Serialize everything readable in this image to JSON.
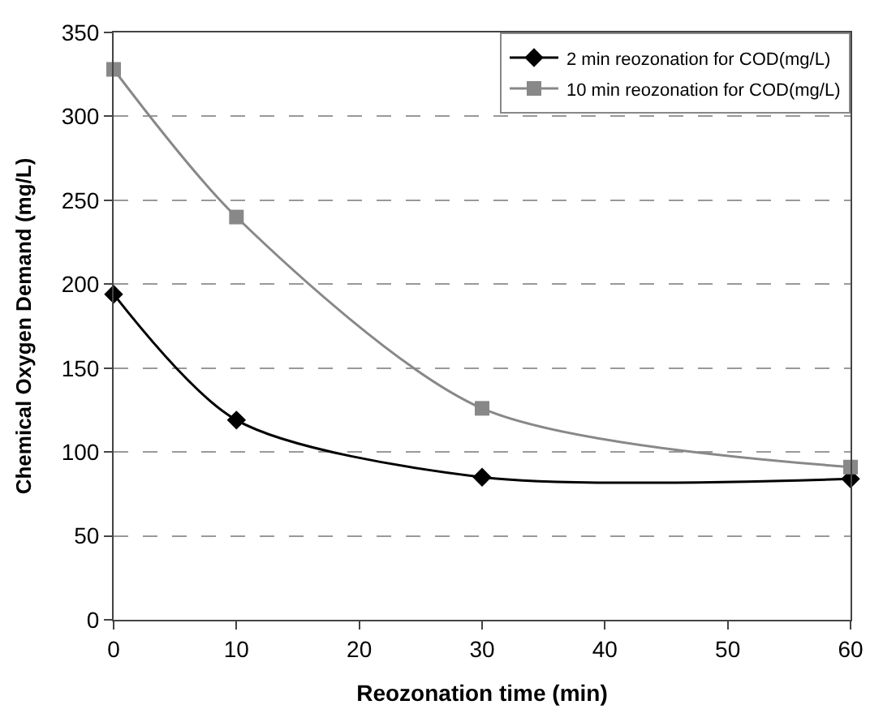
{
  "chart_data": {
    "type": "line",
    "xlabel": "Reozonation time (min)",
    "ylabel": "Chemical Oxygen Demand (mg/L)",
    "x": [
      0,
      10,
      30,
      60
    ],
    "series": [
      {
        "name": "2 min reozonation for COD(mg/L)",
        "color": "#000000",
        "marker": "diamond",
        "values": [
          194,
          119,
          85,
          84
        ]
      },
      {
        "name": "10 min reozonation for COD(mg/L)",
        "color": "#888888",
        "marker": "square",
        "values": [
          328,
          240,
          126,
          91
        ]
      }
    ],
    "xlim": [
      0,
      60
    ],
    "xticks": [
      0,
      10,
      20,
      30,
      40,
      50,
      60
    ],
    "ylim": [
      0,
      350
    ],
    "yticks": [
      0,
      50,
      100,
      150,
      200,
      250,
      300,
      350
    ],
    "grid": "y",
    "legend": "top right",
    "line_style": "solid"
  }
}
